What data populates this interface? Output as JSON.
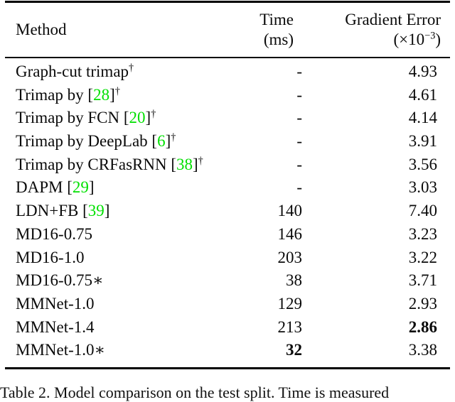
{
  "table": {
    "header": {
      "method": "Method",
      "time_line1": "Time",
      "time_line2": "(ms)",
      "grad_line1": "Gradient Error",
      "grad_unit_pre": "(×10",
      "grad_unit_sup": "−3",
      "grad_unit_post": ")"
    },
    "rows": [
      {
        "method_pre": "Graph-cut trimap",
        "cite": "",
        "method_post": "",
        "dagger": "†",
        "time": "-",
        "gradient": "4.93"
      },
      {
        "method_pre": "Trimap by [",
        "cite": "28",
        "method_post": "]",
        "dagger": "†",
        "time": "-",
        "gradient": "4.61"
      },
      {
        "method_pre": "Trimap by FCN [",
        "cite": "20",
        "method_post": "]",
        "dagger": "†",
        "time": "-",
        "gradient": "4.14"
      },
      {
        "method_pre": "Trimap by DeepLab [",
        "cite": "6",
        "method_post": "]",
        "dagger": "†",
        "time": "-",
        "gradient": "3.91"
      },
      {
        "method_pre": "Trimap by CRFasRNN [",
        "cite": "38",
        "method_post": "]",
        "dagger": "†",
        "time": "-",
        "gradient": "3.56"
      },
      {
        "method_pre": "DAPM [",
        "cite": "29",
        "method_post": "]",
        "dagger": "",
        "time": "-",
        "gradient": "3.03"
      },
      {
        "method_pre": "LDN+FB [",
        "cite": "39",
        "method_post": "]",
        "dagger": "",
        "time": "140",
        "gradient": "7.40"
      },
      {
        "method_pre": "MD16-0.75",
        "cite": "",
        "method_post": "",
        "dagger": "",
        "time": "146",
        "gradient": "3.23"
      },
      {
        "method_pre": "MD16-1.0",
        "cite": "",
        "method_post": "",
        "dagger": "",
        "time": "203",
        "gradient": "3.22"
      },
      {
        "method_pre": "MD16-0.75∗",
        "cite": "",
        "method_post": "",
        "dagger": "",
        "time": "38",
        "gradient": "3.71"
      },
      {
        "method_pre": "MMNet-1.0",
        "cite": "",
        "method_post": "",
        "dagger": "",
        "time": "129",
        "gradient": "2.93"
      },
      {
        "method_pre": "MMNet-1.4",
        "cite": "",
        "method_post": "",
        "dagger": "",
        "time": "213",
        "gradient": "2.86"
      },
      {
        "method_pre": "MMNet-1.0∗",
        "cite": "",
        "method_post": "",
        "dagger": "",
        "time": "32",
        "gradient": "3.38"
      }
    ]
  },
  "caption": "Table 2. Model comparison on the test split. Time is measured",
  "colors": {
    "citation_green": "#00e000",
    "text": "#0a0a0a",
    "background": "#ffffff"
  }
}
